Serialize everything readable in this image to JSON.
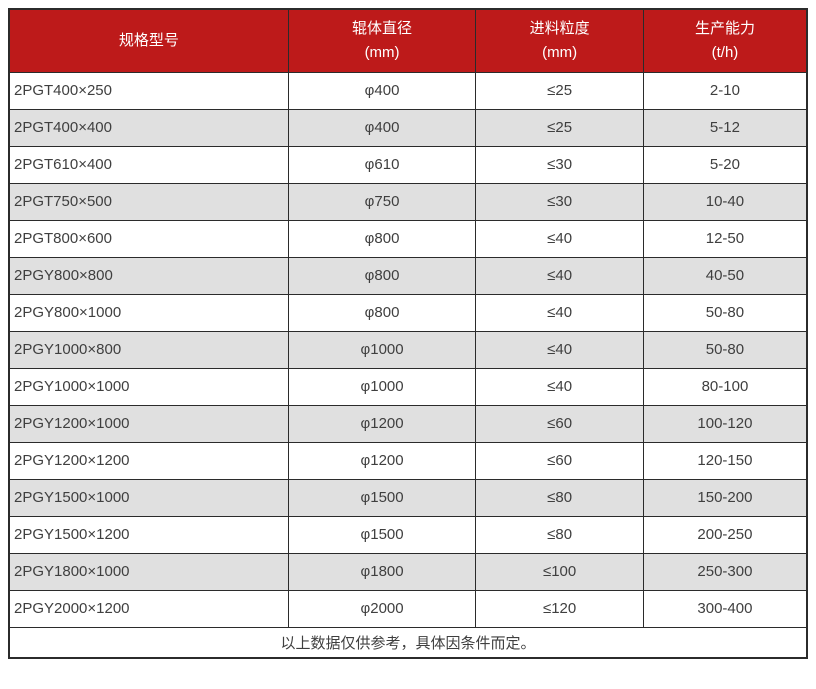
{
  "colors": {
    "header_bg": "#bd1a1a",
    "header_text": "#ffffff",
    "row_bg": "#ffffff",
    "row_alt_bg": "#e0e0e0",
    "border_color": "#2b2b2b",
    "text_color": "#3f3f3f"
  },
  "table": {
    "headers": [
      {
        "key": "model",
        "title": "规格型号",
        "unit": ""
      },
      {
        "key": "roller-diameter",
        "title": "辊体直径",
        "unit": "(mm)"
      },
      {
        "key": "feed-size",
        "title": "进料粒度",
        "unit": "(mm)"
      },
      {
        "key": "capacity",
        "title": "生产能力",
        "unit": "(t/h)"
      }
    ],
    "rows": [
      [
        "2PGT400×250",
        "φ400",
        "≤25",
        "2-10"
      ],
      [
        "2PGT400×400",
        "φ400",
        "≤25",
        "5-12"
      ],
      [
        "2PGT610×400",
        "φ610",
        "≤30",
        "5-20"
      ],
      [
        "2PGT750×500",
        "φ750",
        "≤30",
        "10-40"
      ],
      [
        "2PGT800×600",
        "φ800",
        "≤40",
        "12-50"
      ],
      [
        "2PGY800×800",
        "φ800",
        "≤40",
        "40-50"
      ],
      [
        "2PGY800×1000",
        "φ800",
        "≤40",
        "50-80"
      ],
      [
        "2PGY1000×800",
        "φ1000",
        "≤40",
        "50-80"
      ],
      [
        "2PGY1000×1000",
        "φ1000",
        "≤40",
        "80-100"
      ],
      [
        "2PGY1200×1000",
        "φ1200",
        "≤60",
        "100-120"
      ],
      [
        "2PGY1200×1200",
        "φ1200",
        "≤60",
        "120-150"
      ],
      [
        "2PGY1500×1000",
        "φ1500",
        "≤80",
        "150-200"
      ],
      [
        "2PGY1500×1200",
        "φ1500",
        "≤80",
        "200-250"
      ],
      [
        "2PGY1800×1000",
        "φ1800",
        "≤100",
        "250-300"
      ],
      [
        "2PGY2000×1200",
        "φ2000",
        "≤120",
        "300-400"
      ]
    ],
    "footnote": "以上数据仅供参考，具体因条件而定。"
  }
}
